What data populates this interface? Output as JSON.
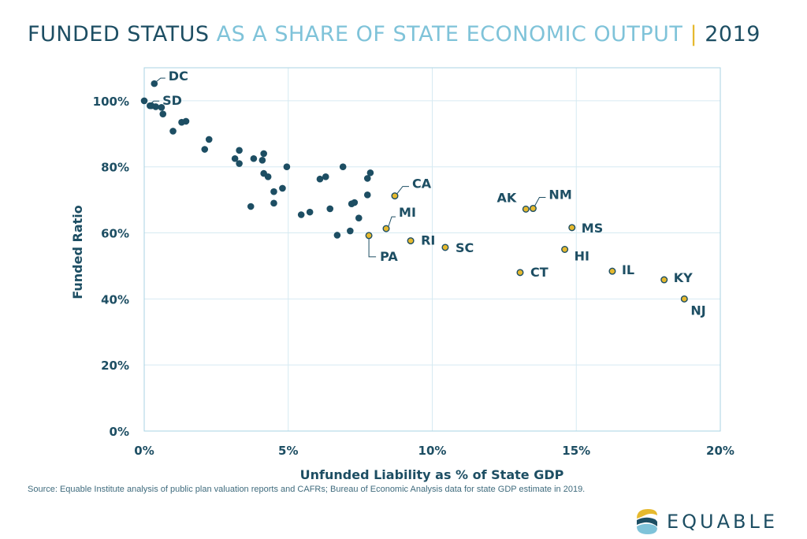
{
  "title": {
    "part1": "FUNDED STATUS",
    "part2": "AS A SHARE OF STATE ECONOMIC OUTPUT",
    "separator": "|",
    "part3": "2019"
  },
  "source": "Source: Equable Institute analysis of public plan valuation reports and CAFRs; Bureau of Economic Analysis data for state GDP estimate in 2019.",
  "logo": {
    "text": "EQUABLE",
    "icon": "equable-logo-icon"
  },
  "colors": {
    "navy": "#1d4e63",
    "light": "#7fc3d9",
    "gold": "#e6b92e",
    "grid": "#d6eaf2"
  },
  "chart_data": {
    "type": "scatter",
    "title": "",
    "xlabel": "Unfunded Liability as % of State GDP",
    "ylabel": "Funded Ratio",
    "xlim": [
      0,
      20
    ],
    "ylim": [
      0,
      110
    ],
    "xticks": [
      0,
      5,
      10,
      15,
      20
    ],
    "xtick_labels": [
      "0%",
      "5%",
      "10%",
      "15%",
      "20%"
    ],
    "yticks": [
      0,
      20,
      40,
      60,
      80,
      100
    ],
    "ytick_labels": [
      "0%",
      "20%",
      "40%",
      "60%",
      "80%",
      "100%"
    ],
    "grid": true,
    "unlabeled_points": [
      [
        0.0,
        100.0
      ],
      [
        0.2,
        98.5
      ],
      [
        0.4,
        98.2
      ],
      [
        0.6,
        98.0
      ],
      [
        0.65,
        96.0
      ],
      [
        1.0,
        90.8
      ],
      [
        1.3,
        93.5
      ],
      [
        1.45,
        93.8
      ],
      [
        2.1,
        85.3
      ],
      [
        2.25,
        88.3
      ],
      [
        3.15,
        82.5
      ],
      [
        3.3,
        85.0
      ],
      [
        3.3,
        81.0
      ],
      [
        3.8,
        82.5
      ],
      [
        4.1,
        82.0
      ],
      [
        4.15,
        84.0
      ],
      [
        4.15,
        78.0
      ],
      [
        4.3,
        77.0
      ],
      [
        4.95,
        80.0
      ],
      [
        6.1,
        76.3
      ],
      [
        6.3,
        77.0
      ],
      [
        6.9,
        80.0
      ],
      [
        7.75,
        76.5
      ],
      [
        7.85,
        78.2
      ],
      [
        4.5,
        72.5
      ],
      [
        4.8,
        73.5
      ],
      [
        3.7,
        68.0
      ],
      [
        4.5,
        69.0
      ],
      [
        5.45,
        65.5
      ],
      [
        5.75,
        66.3
      ],
      [
        6.45,
        67.3
      ],
      [
        7.2,
        68.8
      ],
      [
        7.3,
        69.2
      ],
      [
        7.75,
        71.5
      ],
      [
        7.45,
        64.5
      ],
      [
        6.7,
        59.3
      ],
      [
        7.15,
        60.6
      ]
    ],
    "labeled_points": [
      {
        "label": "DC",
        "x": 0.35,
        "y": 105.2,
        "highlight": false
      },
      {
        "label": "SD",
        "x": 0.25,
        "y": 98.5,
        "highlight": false
      },
      {
        "label": "CA",
        "x": 8.7,
        "y": 71.2,
        "highlight": true
      },
      {
        "label": "MI",
        "x": 8.4,
        "y": 61.3,
        "highlight": true
      },
      {
        "label": "PA",
        "x": 7.8,
        "y": 59.2,
        "highlight": true
      },
      {
        "label": "RI",
        "x": 9.25,
        "y": 57.6,
        "highlight": true
      },
      {
        "label": "SC",
        "x": 10.45,
        "y": 55.6,
        "highlight": true
      },
      {
        "label": "AK",
        "x": 13.25,
        "y": 67.2,
        "highlight": true
      },
      {
        "label": "NM",
        "x": 13.5,
        "y": 67.4,
        "highlight": true
      },
      {
        "label": "MS",
        "x": 14.85,
        "y": 61.6,
        "highlight": true
      },
      {
        "label": "HI",
        "x": 14.6,
        "y": 55.0,
        "highlight": true
      },
      {
        "label": "CT",
        "x": 13.05,
        "y": 48.0,
        "highlight": true
      },
      {
        "label": "IL",
        "x": 16.25,
        "y": 48.4,
        "highlight": true
      },
      {
        "label": "KY",
        "x": 18.05,
        "y": 45.8,
        "highlight": true
      },
      {
        "label": "NJ",
        "x": 18.75,
        "y": 40.0,
        "highlight": true
      }
    ]
  }
}
